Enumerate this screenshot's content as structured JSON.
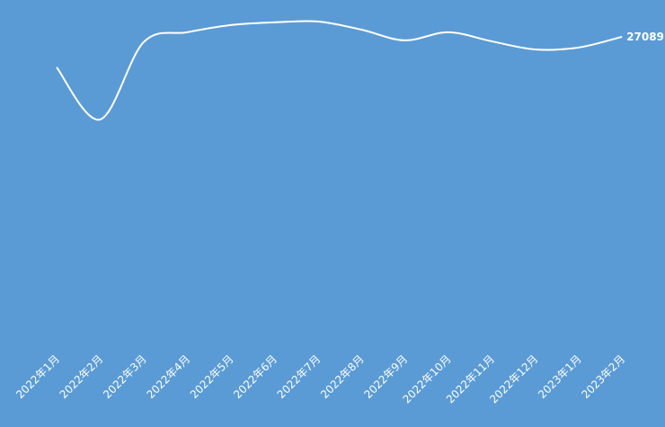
{
  "chart_data": {
    "type": "line",
    "categories": [
      "2022年1月",
      "2022年2月",
      "2022年3月",
      "2022年4月",
      "2022年5月",
      "2022年6月",
      "2022年7月",
      "2022年8月",
      "2022年9月",
      "2022年10月",
      "2022年11月",
      "2022年12月",
      "2023年1月",
      "2023年2月"
    ],
    "values": [
      24450,
      19950,
      26620,
      27480,
      28100,
      28330,
      28410,
      27710,
      26780,
      27480,
      26700,
      26000,
      26160,
      27089
    ],
    "color": "#ffffff",
    "background": "#5b9bd5",
    "smooth": true,
    "drop_lines": true,
    "label_last": true,
    "ylim": [
      0,
      30000
    ]
  }
}
